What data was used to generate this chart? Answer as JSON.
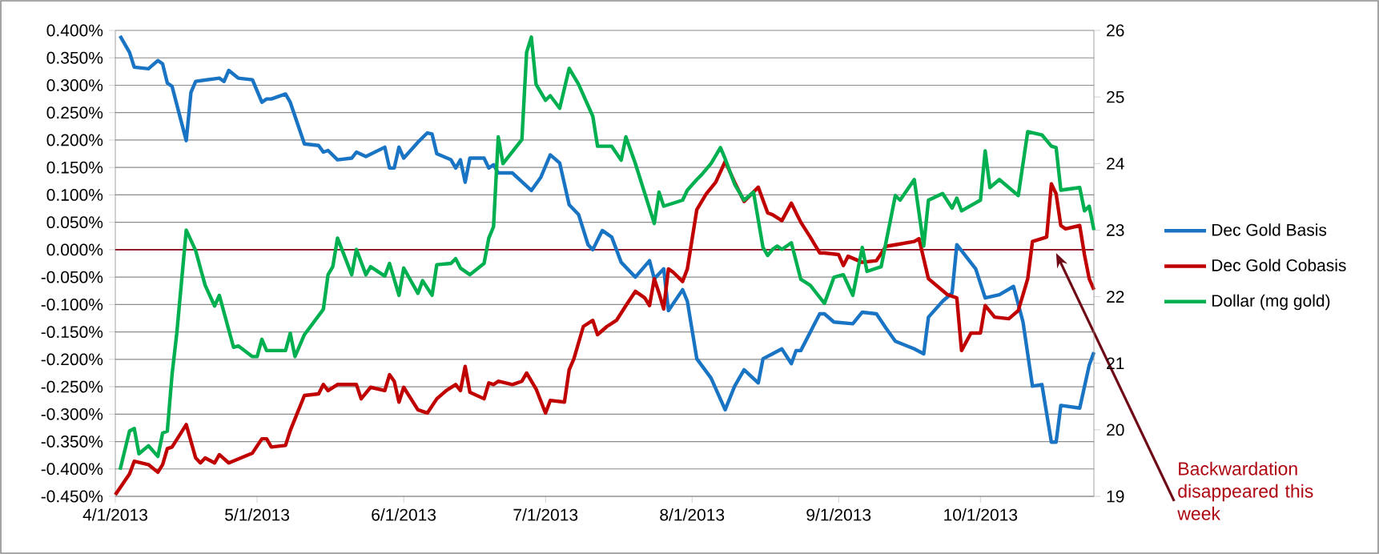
{
  "chart_data": {
    "type": "line",
    "xlim": [
      "2013-04-01",
      "2013-10-25"
    ],
    "xticks": [
      {
        "value": "2013-04-01",
        "label": "4/1/2013"
      },
      {
        "value": "2013-05-01",
        "label": "5/1/2013"
      },
      {
        "value": "2013-06-01",
        "label": "6/1/2013"
      },
      {
        "value": "2013-07-01",
        "label": "7/1/2013"
      },
      {
        "value": "2013-08-01",
        "label": "8/1/2013"
      },
      {
        "value": "2013-09-01",
        "label": "9/1/2013"
      },
      {
        "value": "2013-10-01",
        "label": "10/1/2013"
      }
    ],
    "ylim": [
      -0.45,
      0.4
    ],
    "yticks": [
      {
        "value": 0.4,
        "label": "0.400%"
      },
      {
        "value": 0.35,
        "label": "0.350%"
      },
      {
        "value": 0.3,
        "label": "0.300%"
      },
      {
        "value": 0.25,
        "label": "0.250%"
      },
      {
        "value": 0.2,
        "label": "0.200%"
      },
      {
        "value": 0.15,
        "label": "0.150%"
      },
      {
        "value": 0.1,
        "label": "0.100%"
      },
      {
        "value": 0.05,
        "label": "0.050%"
      },
      {
        "value": 0,
        "label": "0.000%"
      },
      {
        "value": -0.05,
        "label": "-0.050%"
      },
      {
        "value": -0.1,
        "label": "-0.100%"
      },
      {
        "value": -0.15,
        "label": "-0.150%"
      },
      {
        "value": -0.2,
        "label": "-0.200%"
      },
      {
        "value": -0.25,
        "label": "-0.250%"
      },
      {
        "value": -0.3,
        "label": "-0.300%"
      },
      {
        "value": -0.35,
        "label": "-0.350%"
      },
      {
        "value": -0.4,
        "label": "-0.400%"
      },
      {
        "value": -0.45,
        "label": "-0.450%"
      }
    ],
    "y2lim": [
      19,
      26
    ],
    "y2ticks": [
      19,
      20,
      21,
      22,
      23,
      24,
      25,
      26
    ],
    "grid": "y",
    "legend": "right",
    "ref_lines": [
      {
        "axis": "y",
        "value": 0,
        "color": "#8b0a1a"
      }
    ],
    "annotations": [
      {
        "text": "Backwardation disappeared this week",
        "x": "2013-10-17",
        "y": -0.006
      }
    ],
    "series": [
      {
        "name": "Dec Gold Basis",
        "color": "#1a74c4",
        "x": [
          "2013-04-02",
          "2013-04-04",
          "2013-04-05",
          "2013-04-08",
          "2013-04-10",
          "2013-04-11",
          "2013-04-12",
          "2013-04-13",
          "2013-04-16",
          "2013-04-17",
          "2013-04-18",
          "2013-04-23",
          "2013-04-24",
          "2013-04-25",
          "2013-04-27",
          "2013-04-30",
          "2013-05-02",
          "2013-05-03",
          "2013-05-04",
          "2013-05-07",
          "2013-05-08",
          "2013-05-11",
          "2013-05-14",
          "2013-05-15",
          "2013-05-16",
          "2013-05-18",
          "2013-05-21",
          "2013-05-22",
          "2013-05-24",
          "2013-05-28",
          "2013-05-29",
          "2013-05-30",
          "2013-05-31",
          "2013-06-01",
          "2013-06-04",
          "2013-06-06",
          "2013-06-07",
          "2013-06-08",
          "2013-06-11",
          "2013-06-12",
          "2013-06-13",
          "2013-06-14",
          "2013-06-15",
          "2013-06-18",
          "2013-06-19",
          "2013-06-20",
          "2013-06-21",
          "2013-06-24",
          "2013-06-28",
          "2013-06-30",
          "2013-07-02",
          "2013-07-04",
          "2013-07-06",
          "2013-07-08",
          "2013-07-10",
          "2013-07-11",
          "2013-07-13",
          "2013-07-15",
          "2013-07-17",
          "2013-07-20",
          "2013-07-23",
          "2013-07-24",
          "2013-07-26",
          "2013-07-27",
          "2013-07-30",
          "2013-07-31",
          "2013-08-02",
          "2013-08-05",
          "2013-08-08",
          "2013-08-10",
          "2013-08-12",
          "2013-08-15",
          "2013-08-16",
          "2013-08-18",
          "2013-08-20",
          "2013-08-22",
          "2013-08-23",
          "2013-08-24",
          "2013-08-28",
          "2013-08-29",
          "2013-08-31",
          "2013-09-04",
          "2013-09-06",
          "2013-09-09",
          "2013-09-11",
          "2013-09-13",
          "2013-09-17",
          "2013-09-19",
          "2013-09-20",
          "2013-09-23",
          "2013-09-25",
          "2013-09-26",
          "2013-09-30",
          "2013-10-02",
          "2013-10-05",
          "2013-10-08",
          "2013-10-10",
          "2013-10-12",
          "2013-10-14",
          "2013-10-16",
          "2013-10-17",
          "2013-10-18",
          "2013-10-22",
          "2013-10-24",
          "2013-10-25"
        ],
        "values": [
          0.39,
          0.36,
          0.333,
          0.33,
          0.345,
          0.339,
          0.304,
          0.298,
          0.199,
          0.287,
          0.307,
          0.313,
          0.307,
          0.327,
          0.313,
          0.31,
          0.269,
          0.275,
          0.275,
          0.284,
          0.269,
          0.193,
          0.19,
          0.178,
          0.181,
          0.164,
          0.167,
          0.178,
          0.17,
          0.187,
          0.149,
          0.149,
          0.187,
          0.167,
          0.196,
          0.213,
          0.211,
          0.175,
          0.164,
          0.149,
          0.164,
          0.123,
          0.167,
          0.167,
          0.149,
          0.155,
          0.14,
          0.14,
          0.108,
          0.132,
          0.173,
          0.158,
          0.082,
          0.064,
          0.009,
          0.0,
          0.035,
          0.023,
          -0.023,
          -0.05,
          -0.02,
          -0.053,
          -0.035,
          -0.111,
          -0.073,
          -0.094,
          -0.199,
          -0.234,
          -0.292,
          -0.249,
          -0.219,
          -0.243,
          -0.199,
          -0.19,
          -0.181,
          -0.208,
          -0.184,
          -0.184,
          -0.117,
          -0.117,
          -0.132,
          -0.135,
          -0.114,
          -0.117,
          -0.143,
          -0.167,
          -0.181,
          -0.19,
          -0.123,
          -0.094,
          -0.079,
          0.009,
          -0.035,
          -0.088,
          -0.082,
          -0.067,
          -0.132,
          -0.249,
          -0.246,
          -0.351,
          -0.351,
          -0.284,
          -0.289,
          -0.211,
          -0.187
        ]
      },
      {
        "name": "Dec Gold Cobasis",
        "color": "#c00000",
        "x": [
          "2013-04-01",
          "2013-04-04",
          "2013-04-05",
          "2013-04-08",
          "2013-04-10",
          "2013-04-11",
          "2013-04-12",
          "2013-04-13",
          "2013-04-16",
          "2013-04-18",
          "2013-04-19",
          "2013-04-20",
          "2013-04-22",
          "2013-04-23",
          "2013-04-25",
          "2013-04-30",
          "2013-05-02",
          "2013-05-03",
          "2013-05-04",
          "2013-05-07",
          "2013-05-08",
          "2013-05-11",
          "2013-05-14",
          "2013-05-15",
          "2013-05-16",
          "2013-05-18",
          "2013-05-22",
          "2013-05-23",
          "2013-05-25",
          "2013-05-28",
          "2013-05-29",
          "2013-05-30",
          "2013-05-31",
          "2013-06-01",
          "2013-06-04",
          "2013-06-06",
          "2013-06-08",
          "2013-06-10",
          "2013-06-12",
          "2013-06-13",
          "2013-06-14",
          "2013-06-15",
          "2013-06-18",
          "2013-06-19",
          "2013-06-20",
          "2013-06-21",
          "2013-06-24",
          "2013-06-26",
          "2013-06-27",
          "2013-06-29",
          "2013-07-01",
          "2013-07-02",
          "2013-07-05",
          "2013-07-06",
          "2013-07-07",
          "2013-07-09",
          "2013-07-11",
          "2013-07-12",
          "2013-07-14",
          "2013-07-16",
          "2013-07-18",
          "2013-07-20",
          "2013-07-22",
          "2013-07-23",
          "2013-07-24",
          "2013-07-25",
          "2013-07-26",
          "2013-07-27",
          "2013-07-28",
          "2013-07-30",
          "2013-07-31",
          "2013-08-02",
          "2013-08-04",
          "2013-08-06",
          "2013-08-08",
          "2013-08-10",
          "2013-08-12",
          "2013-08-15",
          "2013-08-17",
          "2013-08-18",
          "2013-08-20",
          "2013-08-22",
          "2013-08-24",
          "2013-08-26",
          "2013-08-28",
          "2013-08-29",
          "2013-09-01",
          "2013-09-02",
          "2013-09-03",
          "2013-09-06",
          "2013-09-09",
          "2013-09-11",
          "2013-09-13",
          "2013-09-17",
          "2013-09-18",
          "2013-09-20",
          "2013-09-24",
          "2013-09-26",
          "2013-09-27",
          "2013-09-29",
          "2013-10-01",
          "2013-10-02",
          "2013-10-04",
          "2013-10-07",
          "2013-10-09",
          "2013-10-11",
          "2013-10-12",
          "2013-10-15",
          "2013-10-16",
          "2013-10-17",
          "2013-10-18",
          "2013-10-19",
          "2013-10-22",
          "2013-10-23",
          "2013-10-24",
          "2013-10-25"
        ],
        "values": [
          -0.447,
          -0.409,
          -0.386,
          -0.392,
          -0.406,
          -0.392,
          -0.363,
          -0.36,
          -0.319,
          -0.38,
          -0.389,
          -0.38,
          -0.389,
          -0.374,
          -0.389,
          -0.371,
          -0.345,
          -0.345,
          -0.36,
          -0.357,
          -0.33,
          -0.266,
          -0.263,
          -0.246,
          -0.257,
          -0.246,
          -0.246,
          -0.272,
          -0.251,
          -0.257,
          -0.228,
          -0.24,
          -0.278,
          -0.251,
          -0.292,
          -0.298,
          -0.272,
          -0.257,
          -0.246,
          -0.257,
          -0.213,
          -0.26,
          -0.272,
          -0.243,
          -0.246,
          -0.24,
          -0.246,
          -0.24,
          -0.225,
          -0.254,
          -0.298,
          -0.275,
          -0.278,
          -0.219,
          -0.199,
          -0.14,
          -0.129,
          -0.155,
          -0.14,
          -0.129,
          -0.102,
          -0.076,
          -0.088,
          -0.102,
          -0.053,
          -0.079,
          -0.108,
          -0.035,
          -0.041,
          -0.058,
          -0.035,
          0.073,
          0.102,
          0.123,
          0.161,
          0.123,
          0.088,
          0.114,
          0.067,
          0.064,
          0.053,
          0.085,
          0.05,
          0.023,
          -0.006,
          -0.006,
          -0.009,
          -0.029,
          -0.012,
          -0.023,
          -0.02,
          0.006,
          0.009,
          0.015,
          0.02,
          -0.053,
          -0.082,
          -0.088,
          -0.184,
          -0.152,
          -0.152,
          -0.102,
          -0.123,
          -0.126,
          -0.111,
          -0.053,
          0.015,
          0.023,
          0.12,
          0.102,
          0.044,
          0.038,
          0.044,
          -0.009,
          -0.053,
          -0.073
        ]
      },
      {
        "name": "Dollar (mg gold)",
        "color": "#00b050",
        "axis": "y2",
        "x": [
          "2013-04-02",
          "2013-04-04",
          "2013-04-05",
          "2013-04-06",
          "2013-04-08",
          "2013-04-10",
          "2013-04-11",
          "2013-04-12",
          "2013-04-13",
          "2013-04-14",
          "2013-04-16",
          "2013-04-18",
          "2013-04-20",
          "2013-04-22",
          "2013-04-23",
          "2013-04-26",
          "2013-04-27",
          "2013-04-30",
          "2013-05-01",
          "2013-05-02",
          "2013-05-03",
          "2013-05-07",
          "2013-05-08",
          "2013-05-09",
          "2013-05-11",
          "2013-05-15",
          "2013-05-16",
          "2013-05-17",
          "2013-05-18",
          "2013-05-21",
          "2013-05-22",
          "2013-05-24",
          "2013-05-25",
          "2013-05-28",
          "2013-05-29",
          "2013-05-31",
          "2013-06-01",
          "2013-06-04",
          "2013-06-05",
          "2013-06-07",
          "2013-06-08",
          "2013-06-11",
          "2013-06-12",
          "2013-06-13",
          "2013-06-15",
          "2013-06-18",
          "2013-06-19",
          "2013-06-20",
          "2013-06-21",
          "2013-06-22",
          "2013-06-26",
          "2013-06-27",
          "2013-06-28",
          "2013-06-29",
          "2013-07-01",
          "2013-07-02",
          "2013-07-04",
          "2013-07-06",
          "2013-07-08",
          "2013-07-11",
          "2013-07-12",
          "2013-07-15",
          "2013-07-17",
          "2013-07-18",
          "2013-07-20",
          "2013-07-24",
          "2013-07-25",
          "2013-07-26",
          "2013-07-30",
          "2013-07-31",
          "2013-08-02",
          "2013-08-03",
          "2013-08-05",
          "2013-08-07",
          "2013-08-08",
          "2013-08-10",
          "2013-08-12",
          "2013-08-14",
          "2013-08-16",
          "2013-08-17",
          "2013-08-18",
          "2013-08-19",
          "2013-08-20",
          "2013-08-22",
          "2013-08-24",
          "2013-08-26",
          "2013-08-29",
          "2013-08-31",
          "2013-09-02",
          "2013-09-04",
          "2013-09-06",
          "2013-09-07",
          "2013-09-10",
          "2013-09-11",
          "2013-09-13",
          "2013-09-14",
          "2013-09-17",
          "2013-09-19",
          "2013-09-20",
          "2013-09-23",
          "2013-09-25",
          "2013-09-26",
          "2013-09-27",
          "2013-10-01",
          "2013-10-02",
          "2013-10-03",
          "2013-10-05",
          "2013-10-09",
          "2013-10-11",
          "2013-10-14",
          "2013-10-16",
          "2013-10-17",
          "2013-10-18",
          "2013-10-22",
          "2013-10-23",
          "2013-10-24",
          "2013-10-25"
        ],
        "values": [
          19.4,
          19.98,
          20.02,
          19.64,
          19.76,
          19.6,
          19.95,
          19.98,
          20.83,
          21.45,
          23.0,
          22.69,
          22.17,
          21.86,
          22.02,
          21.24,
          21.26,
          21.1,
          21.1,
          21.36,
          21.19,
          21.19,
          21.45,
          21.1,
          21.43,
          21.81,
          22.33,
          22.45,
          22.88,
          22.33,
          22.71,
          22.33,
          22.45,
          22.31,
          22.5,
          22.02,
          22.43,
          22.05,
          22.24,
          22.02,
          22.48,
          22.5,
          22.57,
          22.43,
          22.33,
          22.5,
          22.88,
          23.05,
          24.4,
          24.0,
          24.36,
          25.67,
          25.9,
          25.19,
          24.95,
          25.02,
          24.83,
          25.43,
          25.19,
          24.71,
          24.26,
          24.26,
          24.05,
          24.4,
          24.0,
          23.1,
          23.57,
          23.36,
          23.45,
          23.6,
          23.76,
          23.83,
          24.0,
          24.24,
          24.07,
          23.69,
          23.45,
          23.57,
          22.74,
          22.62,
          22.71,
          22.76,
          22.71,
          22.81,
          22.26,
          22.17,
          21.9,
          22.29,
          22.33,
          22.02,
          22.74,
          22.38,
          22.45,
          22.81,
          23.52,
          23.45,
          23.76,
          22.76,
          23.45,
          23.55,
          23.33,
          23.48,
          23.29,
          23.45,
          24.19,
          23.64,
          23.76,
          23.52,
          24.48,
          24.43,
          24.26,
          24.24,
          23.6,
          23.64,
          23.29,
          23.36,
          23.0
        ]
      }
    ]
  }
}
